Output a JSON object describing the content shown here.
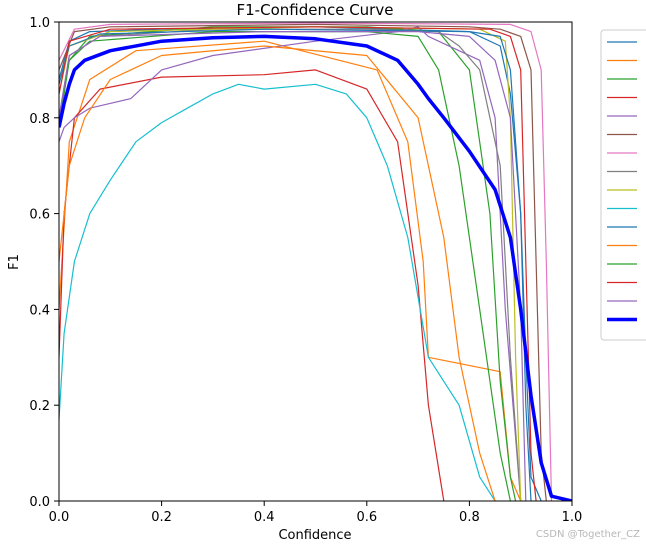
{
  "chart_data": {
    "type": "line",
    "title": "F1-Confidence Curve",
    "xlabel": "Confidence",
    "ylabel": "F1",
    "xlim": [
      0,
      1
    ],
    "ylim": [
      0,
      1
    ],
    "grid": false,
    "legend_position": "right, outside plot",
    "x_ticks": [
      "0.0",
      "0.2",
      "0.4",
      "0.6",
      "0.8",
      "1.0"
    ],
    "y_ticks": [
      "0.0",
      "0.2",
      "0.4",
      "0.6",
      "0.8",
      "1.0"
    ],
    "series": [
      {
        "color": "#1f77b4",
        "width": 1.2,
        "points": [
          [
            0.0,
            0.88
          ],
          [
            0.02,
            0.96
          ],
          [
            0.06,
            0.98
          ],
          [
            0.2,
            0.985
          ],
          [
            0.5,
            0.99
          ],
          [
            0.8,
            0.98
          ],
          [
            0.86,
            0.95
          ],
          [
            0.88,
            0.85
          ],
          [
            0.9,
            0.6
          ],
          [
            0.91,
            0.3
          ],
          [
            0.92,
            0.05
          ],
          [
            0.94,
            0.0
          ]
        ]
      },
      {
        "color": "#ff7f0e",
        "width": 1.2,
        "points": [
          [
            0.0,
            0.4
          ],
          [
            0.02,
            0.75
          ],
          [
            0.06,
            0.88
          ],
          [
            0.15,
            0.94
          ],
          [
            0.4,
            0.96
          ],
          [
            0.62,
            0.9
          ],
          [
            0.68,
            0.75
          ],
          [
            0.71,
            0.5
          ],
          [
            0.72,
            0.3
          ],
          [
            0.86,
            0.27
          ],
          [
            0.88,
            0.05
          ],
          [
            0.9,
            0.0
          ]
        ]
      },
      {
        "color": "#2ca02c",
        "width": 1.2,
        "points": [
          [
            0.0,
            0.78
          ],
          [
            0.02,
            0.92
          ],
          [
            0.06,
            0.97
          ],
          [
            0.3,
            0.99
          ],
          [
            0.6,
            0.99
          ],
          [
            0.74,
            0.98
          ],
          [
            0.8,
            0.9
          ],
          [
            0.84,
            0.6
          ],
          [
            0.86,
            0.25
          ],
          [
            0.88,
            0.05
          ],
          [
            0.89,
            0.0
          ]
        ]
      },
      {
        "color": "#d62728",
        "width": 1.2,
        "points": [
          [
            0.0,
            0.3
          ],
          [
            0.01,
            0.6
          ],
          [
            0.03,
            0.8
          ],
          [
            0.08,
            0.86
          ],
          [
            0.2,
            0.885
          ],
          [
            0.4,
            0.89
          ],
          [
            0.5,
            0.9
          ],
          [
            0.6,
            0.86
          ],
          [
            0.66,
            0.75
          ],
          [
            0.7,
            0.45
          ],
          [
            0.72,
            0.2
          ],
          [
            0.75,
            0.0
          ]
        ]
      },
      {
        "color": "#9467bd",
        "width": 1.2,
        "points": [
          [
            0.0,
            0.75
          ],
          [
            0.01,
            0.78
          ],
          [
            0.03,
            0.8
          ],
          [
            0.06,
            0.82
          ],
          [
            0.14,
            0.84
          ],
          [
            0.2,
            0.9
          ],
          [
            0.3,
            0.93
          ],
          [
            0.5,
            0.96
          ],
          [
            0.66,
            0.98
          ],
          [
            0.7,
            0.99
          ],
          [
            0.72,
            0.97
          ],
          [
            0.82,
            0.92
          ],
          [
            0.85,
            0.8
          ],
          [
            0.87,
            0.4
          ],
          [
            0.9,
            0.0
          ]
        ]
      },
      {
        "color": "#8c564b",
        "width": 1.2,
        "points": [
          [
            0.0,
            0.9
          ],
          [
            0.03,
            0.98
          ],
          [
            0.1,
            0.99
          ],
          [
            0.5,
            0.995
          ],
          [
            0.8,
            0.99
          ],
          [
            0.86,
            0.985
          ],
          [
            0.9,
            0.97
          ],
          [
            0.92,
            0.9
          ],
          [
            0.93,
            0.5
          ],
          [
            0.94,
            0.1
          ],
          [
            0.95,
            0.0
          ]
        ]
      },
      {
        "color": "#e377c2",
        "width": 1.2,
        "points": [
          [
            0.0,
            0.92
          ],
          [
            0.03,
            0.985
          ],
          [
            0.1,
            0.995
          ],
          [
            0.5,
            0.998
          ],
          [
            0.88,
            0.995
          ],
          [
            0.92,
            0.98
          ],
          [
            0.94,
            0.9
          ],
          [
            0.95,
            0.5
          ],
          [
            0.96,
            0.0
          ]
        ]
      },
      {
        "color": "#7f7f7f",
        "width": 1.2,
        "points": [
          [
            0.0,
            0.8
          ],
          [
            0.02,
            0.93
          ],
          [
            0.08,
            0.97
          ],
          [
            0.3,
            0.985
          ],
          [
            0.6,
            0.985
          ],
          [
            0.74,
            0.98
          ],
          [
            0.78,
            0.95
          ],
          [
            0.82,
            0.9
          ],
          [
            0.86,
            0.7
          ],
          [
            0.88,
            0.3
          ],
          [
            0.9,
            0.0
          ]
        ]
      },
      {
        "color": "#bcbd22",
        "width": 1.2,
        "points": [
          [
            0.0,
            0.85
          ],
          [
            0.02,
            0.95
          ],
          [
            0.1,
            0.98
          ],
          [
            0.5,
            0.99
          ],
          [
            0.82,
            0.985
          ],
          [
            0.87,
            0.96
          ],
          [
            0.88,
            0.8
          ],
          [
            0.89,
            0.3
          ],
          [
            0.9,
            0.0
          ]
        ]
      },
      {
        "color": "#17becf",
        "width": 1.2,
        "points": [
          [
            0.0,
            0.17
          ],
          [
            0.01,
            0.35
          ],
          [
            0.03,
            0.5
          ],
          [
            0.06,
            0.6
          ],
          [
            0.1,
            0.67
          ],
          [
            0.15,
            0.75
          ],
          [
            0.2,
            0.79
          ],
          [
            0.25,
            0.82
          ],
          [
            0.3,
            0.85
          ],
          [
            0.35,
            0.87
          ],
          [
            0.4,
            0.86
          ],
          [
            0.5,
            0.87
          ],
          [
            0.56,
            0.85
          ],
          [
            0.6,
            0.8
          ],
          [
            0.64,
            0.7
          ],
          [
            0.68,
            0.55
          ],
          [
            0.72,
            0.3
          ],
          [
            0.78,
            0.2
          ],
          [
            0.82,
            0.05
          ],
          [
            0.85,
            0.0
          ]
        ]
      },
      {
        "color": "#1f77b4",
        "width": 1.2,
        "points": [
          [
            0.0,
            0.87
          ],
          [
            0.02,
            0.95
          ],
          [
            0.08,
            0.975
          ],
          [
            0.4,
            0.985
          ],
          [
            0.8,
            0.98
          ],
          [
            0.86,
            0.97
          ],
          [
            0.88,
            0.9
          ],
          [
            0.9,
            0.6
          ],
          [
            0.91,
            0.2
          ],
          [
            0.92,
            0.0
          ]
        ]
      },
      {
        "color": "#ff7f0e",
        "width": 1.2,
        "points": [
          [
            0.0,
            0.5
          ],
          [
            0.02,
            0.7
          ],
          [
            0.05,
            0.8
          ],
          [
            0.1,
            0.88
          ],
          [
            0.2,
            0.93
          ],
          [
            0.4,
            0.95
          ],
          [
            0.6,
            0.93
          ],
          [
            0.7,
            0.8
          ],
          [
            0.75,
            0.55
          ],
          [
            0.78,
            0.3
          ],
          [
            0.82,
            0.1
          ],
          [
            0.85,
            0.0
          ]
        ]
      },
      {
        "color": "#2ca02c",
        "width": 1.2,
        "points": [
          [
            0.0,
            0.8
          ],
          [
            0.02,
            0.92
          ],
          [
            0.06,
            0.96
          ],
          [
            0.3,
            0.98
          ],
          [
            0.6,
            0.98
          ],
          [
            0.7,
            0.97
          ],
          [
            0.74,
            0.9
          ],
          [
            0.78,
            0.7
          ],
          [
            0.82,
            0.4
          ],
          [
            0.86,
            0.1
          ],
          [
            0.88,
            0.0
          ]
        ]
      },
      {
        "color": "#d62728",
        "width": 1.2,
        "points": [
          [
            0.0,
            0.85
          ],
          [
            0.02,
            0.96
          ],
          [
            0.1,
            0.985
          ],
          [
            0.5,
            0.99
          ],
          [
            0.84,
            0.985
          ],
          [
            0.88,
            0.97
          ],
          [
            0.9,
            0.9
          ],
          [
            0.91,
            0.5
          ],
          [
            0.92,
            0.1
          ],
          [
            0.93,
            0.0
          ]
        ]
      },
      {
        "color": "#9467bd",
        "width": 1.2,
        "points": [
          [
            0.0,
            0.8
          ],
          [
            0.02,
            0.93
          ],
          [
            0.08,
            0.97
          ],
          [
            0.4,
            0.98
          ],
          [
            0.7,
            0.98
          ],
          [
            0.8,
            0.97
          ],
          [
            0.85,
            0.92
          ],
          [
            0.88,
            0.8
          ],
          [
            0.9,
            0.4
          ],
          [
            0.91,
            0.0
          ]
        ]
      },
      {
        "color": "#0000ff",
        "width": 3.5,
        "points": [
          [
            0.0,
            0.78
          ],
          [
            0.01,
            0.83
          ],
          [
            0.02,
            0.87
          ],
          [
            0.03,
            0.9
          ],
          [
            0.05,
            0.92
          ],
          [
            0.1,
            0.94
          ],
          [
            0.2,
            0.96
          ],
          [
            0.3,
            0.967
          ],
          [
            0.4,
            0.97
          ],
          [
            0.5,
            0.965
          ],
          [
            0.6,
            0.95
          ],
          [
            0.66,
            0.92
          ],
          [
            0.7,
            0.87
          ],
          [
            0.72,
            0.84
          ],
          [
            0.75,
            0.8
          ],
          [
            0.8,
            0.73
          ],
          [
            0.85,
            0.65
          ],
          [
            0.88,
            0.55
          ],
          [
            0.9,
            0.4
          ],
          [
            0.92,
            0.22
          ],
          [
            0.94,
            0.08
          ],
          [
            0.96,
            0.01
          ],
          [
            1.0,
            0.0
          ]
        ]
      }
    ]
  },
  "watermark": "CSDN @Together_CZ"
}
